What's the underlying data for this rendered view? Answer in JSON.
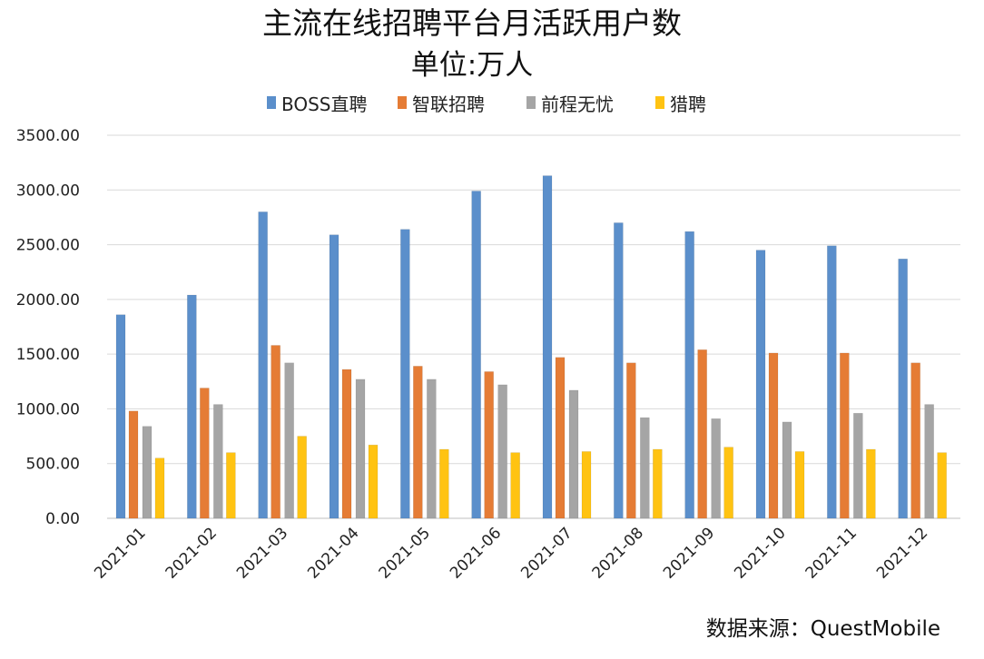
{
  "chart_data": {
    "type": "bar",
    "title": "主流在线招聘平台月活跃用户数",
    "subtitle": "单位:万人",
    "xlabel": "",
    "ylabel": "",
    "ylim": [
      0,
      3500
    ],
    "yticks": [
      "0.00",
      "500.00",
      "1000.00",
      "1500.00",
      "2000.00",
      "2500.00",
      "3000.00",
      "3500.00"
    ],
    "grid": true,
    "legend_position": "top",
    "categories": [
      "2021-01",
      "2021-02",
      "2021-03",
      "2021-04",
      "2021-05",
      "2021-06",
      "2021-07",
      "2021-08",
      "2021-09",
      "2021-10",
      "2021-11",
      "2021-12"
    ],
    "series": [
      {
        "name": "BOSS直聘",
        "color": "#5B8FCB",
        "values": [
          1860,
          2040,
          2800,
          2590,
          2640,
          2990,
          3130,
          2700,
          2620,
          2450,
          2490,
          2370
        ]
      },
      {
        "name": "智联招聘",
        "color": "#E57C35",
        "values": [
          980,
          1190,
          1580,
          1360,
          1390,
          1340,
          1470,
          1420,
          1540,
          1510,
          1510,
          1420
        ]
      },
      {
        "name": "前程无忧",
        "color": "#A5A5A5",
        "values": [
          840,
          1040,
          1420,
          1270,
          1270,
          1220,
          1170,
          920,
          910,
          880,
          960,
          1040
        ]
      },
      {
        "name": "猎聘",
        "color": "#FFC312",
        "values": [
          550,
          600,
          750,
          670,
          630,
          600,
          610,
          630,
          650,
          610,
          630,
          600
        ]
      }
    ],
    "source_note": "数据来源：QuestMobile"
  }
}
